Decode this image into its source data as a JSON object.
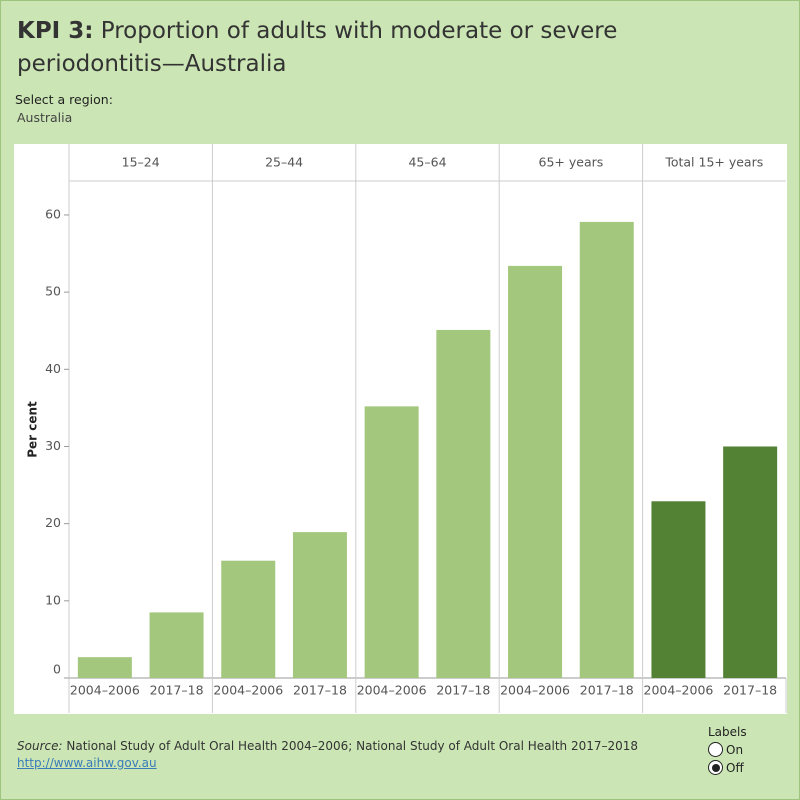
{
  "chart_data": {
    "type": "bar",
    "title_prefix": "KPI 3:",
    "title": "Proportion of adults with moderate or severe periodontitis—Australia",
    "y_label": "Per cent",
    "ylim": [
      0,
      64.4
    ],
    "yticks": [
      0,
      10,
      20,
      30,
      40,
      50,
      60
    ],
    "groups": [
      {
        "name": "15–24",
        "color": "#a3c77c",
        "categories": [
          "2004–2006",
          "2017–18"
        ],
        "values": [
          2.7,
          8.5
        ]
      },
      {
        "name": "25–44",
        "color": "#a3c77c",
        "categories": [
          "2004–2006",
          "2017–18"
        ],
        "values": [
          15.2,
          18.9
        ]
      },
      {
        "name": "45–64",
        "color": "#a3c77c",
        "categories": [
          "2004–2006",
          "2017–18"
        ],
        "values": [
          35.2,
          45.1
        ]
      },
      {
        "name": "65+ years",
        "color": "#a3c77c",
        "categories": [
          "2004–2006",
          "2017–18"
        ],
        "values": [
          53.4,
          59.1
        ]
      },
      {
        "name": "Total 15+ years",
        "color": "#548235",
        "categories": [
          "2004–2006",
          "2017–18"
        ],
        "values": [
          22.9,
          30.0
        ]
      }
    ]
  },
  "filter": {
    "label": "Select a region:",
    "value": "Australia"
  },
  "source": {
    "label": "Source:",
    "text": "National Study of Adult Oral Health 2004–2006; National Study of Adult Oral Health 2017–2018",
    "link": "http://www.aihw.gov.au"
  },
  "labels_toggle": {
    "title": "Labels",
    "options": [
      "On",
      "Off"
    ],
    "selected": "Off"
  }
}
